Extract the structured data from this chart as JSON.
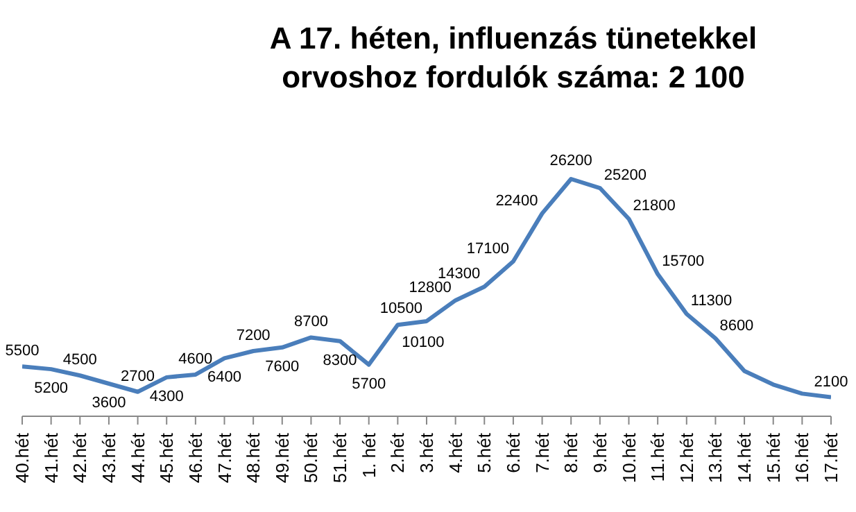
{
  "chart_data": {
    "type": "line",
    "title": "A 17. héten, influenzás tünetekkel orvoshoz fordulók száma:  2 100",
    "categories": [
      "40.hét",
      "41.hét",
      "42.hét",
      "43.hét",
      "44.hét",
      "45.hét",
      "46.hét",
      "47.hét",
      "48.hét",
      "49.hét",
      "50.hét",
      "51.hét",
      "1. hét",
      "2.hét",
      "3.hét",
      "4.hét",
      "5.hét",
      "6.hét",
      "7.hét",
      "8.hét",
      "9.hét",
      "10.hét",
      "11.hét",
      "12.hét",
      "13.hét",
      "14.hét",
      "15.hét",
      "16.hét",
      "17.hét"
    ],
    "series": [
      {
        "color": "#4a7ebb",
        "values": [
          5500,
          5200,
          4500,
          3600,
          2700,
          4300,
          4600,
          6400,
          7200,
          7600,
          8700,
          8300,
          5700,
          10100,
          10500,
          12800,
          14300,
          17100,
          22400,
          26200,
          25200,
          21800,
          15700,
          11300,
          8600,
          5000,
          3500,
          2500,
          2100
        ],
        "value_labels": [
          "5500",
          "5200",
          "4500",
          "3600",
          "2700",
          "4300",
          "4600",
          "6400",
          "7200",
          "7600",
          "8700",
          "8300",
          "5700",
          "10100",
          "10500",
          "12800",
          "14300",
          "17100",
          "22400",
          "26200",
          "25200",
          "21800",
          "15700",
          "11300",
          "8600",
          null,
          null,
          null,
          "2100"
        ]
      }
    ],
    "legend": false,
    "grid": false,
    "marker": "none",
    "line_style": "solid"
  }
}
